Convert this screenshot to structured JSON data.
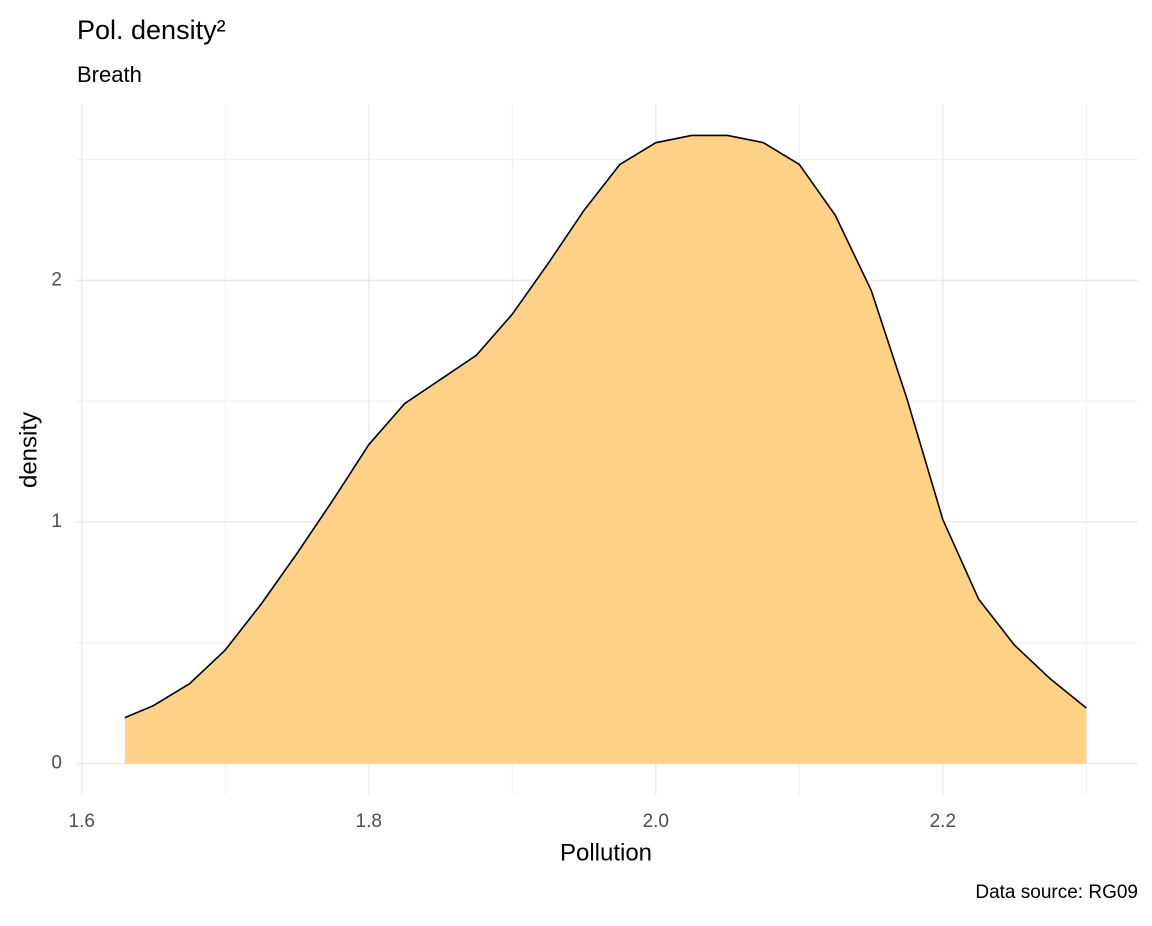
{
  "chart_data": {
    "type": "area",
    "title": "Pol. density²",
    "subtitle": "Breath",
    "caption": "Data source: RG09",
    "x_label": "Pollution",
    "y_label": "density",
    "x": [
      1.63,
      1.65,
      1.675,
      1.7,
      1.725,
      1.75,
      1.775,
      1.8,
      1.825,
      1.85,
      1.875,
      1.9,
      1.925,
      1.95,
      1.975,
      2.0,
      2.025,
      2.05,
      2.075,
      2.1,
      2.125,
      2.15,
      2.175,
      2.2,
      2.225,
      2.25,
      2.275,
      2.3
    ],
    "values": [
      0.19,
      0.24,
      0.33,
      0.47,
      0.66,
      0.87,
      1.09,
      1.32,
      1.49,
      1.59,
      1.69,
      1.86,
      2.07,
      2.29,
      2.48,
      2.57,
      2.6,
      2.6,
      2.57,
      2.48,
      2.27,
      1.96,
      1.51,
      1.01,
      0.68,
      0.49,
      0.35,
      0.23
    ],
    "color": "#fdd07f",
    "line_color": "#000000",
    "xlim": [
      1.596,
      2.336
    ],
    "ylim": [
      -0.13,
      2.73
    ],
    "xticks": [
      1.6,
      1.8,
      {
        "value": 2,
        "label": "2.0"
      },
      2.2
    ],
    "yticks": [
      0,
      1,
      2
    ],
    "grid": true
  }
}
